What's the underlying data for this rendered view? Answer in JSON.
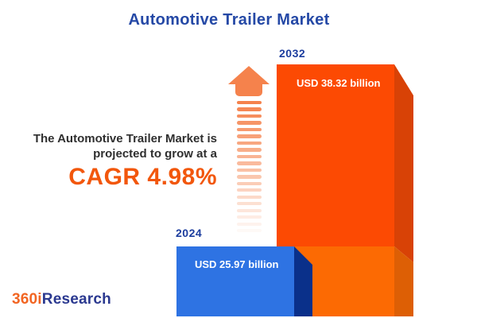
{
  "title": "Automotive Trailer Market",
  "description": {
    "line1": "The Automotive Trailer Market is",
    "line2": "projected to grow at a",
    "cagr": "CAGR 4.98%"
  },
  "logo": {
    "part1": "360i",
    "part2": "Research"
  },
  "colors": {
    "title_blue": "#2549a6",
    "cagr_orange": "#f2570c",
    "year_label_blue": "#1c3d9e",
    "text_dark": "#2f2f2f",
    "arrow_orange": "#f5824c",
    "bar2032_front_top": "#fc4a03",
    "bar2032_front_bottom": "#fc6a03",
    "bar2032_side_top": "#d84206",
    "bar2032_side_bottom": "#dd5f05",
    "bar2024_front": "#2e73e3",
    "bar2024_side": "#0a308a",
    "logo_orange": "#f26522",
    "logo_blue": "#2b3990"
  },
  "chart_data": {
    "type": "bar",
    "title": "Automotive Trailer Market",
    "categories": [
      "2024",
      "2032"
    ],
    "values": [
      25.97,
      38.32
    ],
    "unit": "USD billion",
    "value_labels": [
      "USD 25.97 billion",
      "USD 38.32 billion"
    ],
    "cagr_percent": 4.98,
    "annotation": "The Automotive Trailer Market is projected to grow at a CAGR 4.98%",
    "series_colors": {
      "2024": "#2e73e3",
      "2032": "#fc4b04"
    },
    "axes": "none",
    "legend": "none",
    "style": "3d-infographic-bars-with-growth-arrow"
  }
}
